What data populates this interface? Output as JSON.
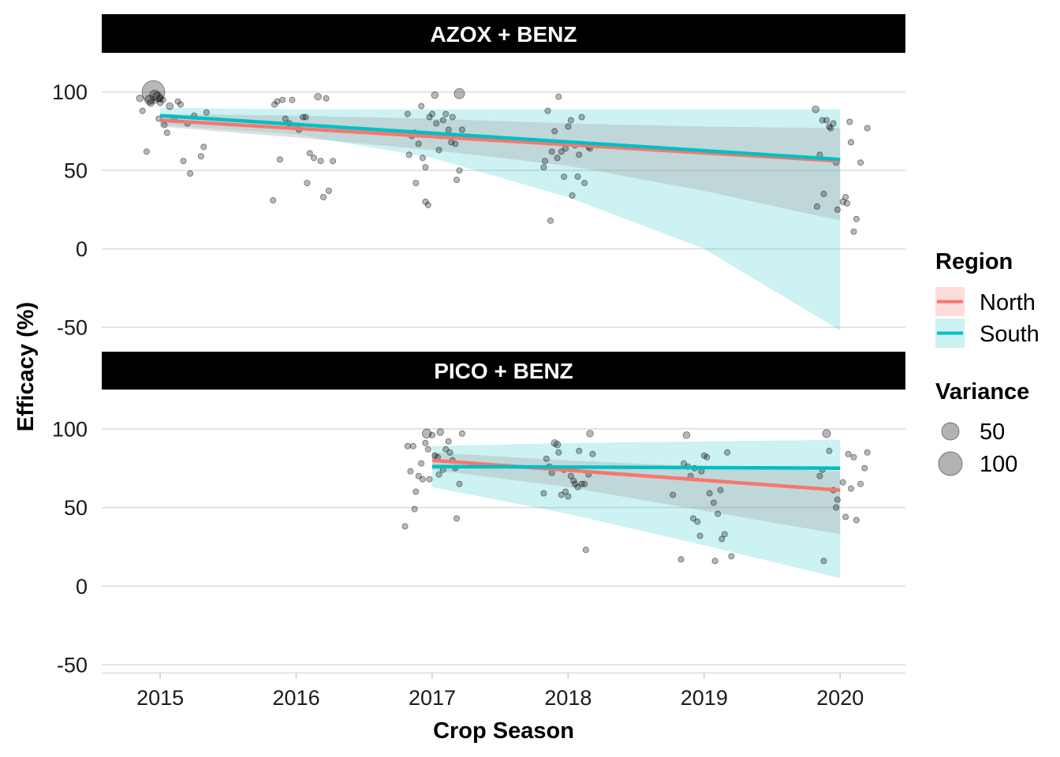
{
  "chart_data": {
    "type": "scatter",
    "xlabel": "Crop Season",
    "ylabel": "Efficacy (%)",
    "x_ticks": [
      "2015",
      "2016",
      "2017",
      "2018",
      "2019",
      "2020"
    ],
    "x_range": [
      2014.57,
      2020.48
    ],
    "ylim": [
      -55,
      125
    ],
    "y_ticks": [
      "-50",
      "0",
      "50",
      "100"
    ],
    "grid": true,
    "legend_position": "right",
    "legend": {
      "region_title": "Region",
      "regions": [
        {
          "name": "North",
          "color": "#F8766D"
        },
        {
          "name": "South",
          "color": "#00BFC4"
        }
      ],
      "variance_title": "Variance",
      "variance_levels": [
        {
          "label": "50",
          "value": 50
        },
        {
          "label": "100",
          "value": 100
        }
      ]
    },
    "panels": [
      {
        "strip": "AZOX + BENZ",
        "trend_lines": [
          {
            "region": "North",
            "x": [
              2015,
              2020
            ],
            "y": [
              82,
              56
            ]
          },
          {
            "region": "South",
            "x": [
              2015,
              2020
            ],
            "y": [
              85,
              57
            ]
          }
        ],
        "ribbons": [
          {
            "region": "South",
            "x": [
              2015,
              2016,
              2017,
              2018,
              2019,
              2020
            ],
            "lower": [
              79,
              73,
              58,
              33,
              0,
              -52
            ],
            "upper": [
              90,
              89,
              89,
              89,
              89,
              89
            ]
          },
          {
            "region": "North",
            "x": [
              2015,
              2016,
              2017,
              2018,
              2019,
              2020
            ],
            "lower": [
              78,
              71,
              63,
              53,
              37,
              18
            ],
            "upper": [
              86,
              85,
              83,
              80,
              78,
              77
            ]
          }
        ],
        "points": [
          [
            2014.85,
            96,
            6
          ],
          [
            2014.87,
            88,
            5
          ],
          [
            2014.9,
            62,
            5
          ],
          [
            2014.92,
            95,
            8
          ],
          [
            2014.93,
            93,
            6
          ],
          [
            2014.95,
            100,
            20
          ],
          [
            2014.96,
            98,
            9
          ],
          [
            2014.98,
            97,
            8
          ],
          [
            2014.99,
            83,
            5
          ],
          [
            2015.0,
            96,
            6
          ],
          [
            2015.0,
            93,
            5
          ],
          [
            2015.02,
            95,
            5
          ],
          [
            2015.03,
            79,
            5
          ],
          [
            2015.05,
            74,
            5
          ],
          [
            2015.07,
            91,
            6
          ],
          [
            2015.1,
            83,
            5
          ],
          [
            2015.13,
            94,
            5
          ],
          [
            2015.15,
            92,
            5
          ],
          [
            2015.17,
            56,
            5
          ],
          [
            2015.2,
            80,
            5
          ],
          [
            2015.22,
            48,
            5
          ],
          [
            2015.25,
            85,
            5
          ],
          [
            2015.3,
            59,
            5
          ],
          [
            2015.32,
            65,
            5
          ],
          [
            2015.34,
            87,
            5
          ],
          [
            2015.83,
            31,
            5
          ],
          [
            2015.84,
            92,
            5
          ],
          [
            2015.86,
            94,
            5
          ],
          [
            2015.88,
            57,
            5
          ],
          [
            2015.9,
            95,
            5
          ],
          [
            2015.92,
            83,
            5
          ],
          [
            2015.95,
            80,
            5
          ],
          [
            2015.97,
            95,
            5
          ],
          [
            2016.0,
            78,
            5
          ],
          [
            2016.02,
            76,
            5
          ],
          [
            2016.05,
            84,
            5
          ],
          [
            2016.07,
            84,
            5
          ],
          [
            2016.08,
            42,
            5
          ],
          [
            2016.1,
            61,
            5
          ],
          [
            2016.13,
            58,
            5
          ],
          [
            2016.16,
            97,
            6
          ],
          [
            2016.18,
            56,
            5
          ],
          [
            2016.2,
            33,
            5
          ],
          [
            2016.22,
            96,
            5
          ],
          [
            2016.24,
            37,
            5
          ],
          [
            2016.27,
            56,
            5
          ],
          [
            2016.82,
            86,
            5
          ],
          [
            2016.83,
            60,
            5
          ],
          [
            2016.85,
            72,
            5
          ],
          [
            2016.87,
            74,
            5
          ],
          [
            2016.88,
            42,
            5
          ],
          [
            2016.9,
            67,
            5
          ],
          [
            2016.92,
            91,
            5
          ],
          [
            2016.93,
            58,
            5
          ],
          [
            2016.95,
            30,
            5
          ],
          [
            2016.95,
            52,
            5
          ],
          [
            2016.97,
            28,
            5
          ],
          [
            2016.98,
            84,
            5
          ],
          [
            2017.0,
            86,
            5
          ],
          [
            2017.02,
            98,
            6
          ],
          [
            2017.03,
            80,
            5
          ],
          [
            2017.05,
            63,
            5
          ],
          [
            2017.06,
            72,
            5
          ],
          [
            2017.08,
            82,
            5
          ],
          [
            2017.1,
            86,
            5
          ],
          [
            2017.12,
            76,
            5
          ],
          [
            2017.14,
            68,
            5
          ],
          [
            2017.15,
            84,
            5
          ],
          [
            2017.17,
            67,
            5
          ],
          [
            2017.18,
            44,
            5
          ],
          [
            2017.2,
            50,
            5
          ],
          [
            2017.2,
            99,
            9
          ],
          [
            2017.22,
            76,
            5
          ],
          [
            2017.82,
            52,
            5
          ],
          [
            2017.83,
            56,
            5
          ],
          [
            2017.85,
            88,
            5
          ],
          [
            2017.87,
            18,
            5
          ],
          [
            2017.88,
            62,
            5
          ],
          [
            2017.9,
            75,
            5
          ],
          [
            2017.92,
            58,
            5
          ],
          [
            2017.93,
            97,
            5
          ],
          [
            2017.95,
            62,
            5
          ],
          [
            2017.97,
            46,
            5
          ],
          [
            2017.98,
            64,
            5
          ],
          [
            2018.0,
            78,
            5
          ],
          [
            2018.02,
            82,
            5
          ],
          [
            2018.03,
            34,
            5
          ],
          [
            2018.05,
            66,
            5
          ],
          [
            2018.07,
            46,
            5
          ],
          [
            2018.08,
            60,
            5
          ],
          [
            2018.1,
            84,
            5
          ],
          [
            2018.12,
            42,
            5
          ],
          [
            2018.15,
            65,
            5
          ],
          [
            2018.16,
            64,
            5
          ],
          [
            2019.82,
            89,
            6
          ],
          [
            2019.83,
            27,
            5
          ],
          [
            2019.85,
            60,
            5
          ],
          [
            2019.87,
            82,
            5
          ],
          [
            2019.88,
            35,
            5
          ],
          [
            2019.9,
            82,
            5
          ],
          [
            2019.92,
            78,
            5
          ],
          [
            2019.93,
            77,
            5
          ],
          [
            2019.95,
            80,
            5
          ],
          [
            2019.97,
            55,
            5
          ],
          [
            2019.98,
            25,
            5
          ],
          [
            2020.02,
            30,
            5
          ],
          [
            2020.04,
            33,
            5
          ],
          [
            2020.05,
            29,
            5
          ],
          [
            2020.07,
            81,
            5
          ],
          [
            2020.08,
            68,
            5
          ],
          [
            2020.1,
            11,
            5
          ],
          [
            2020.12,
            19,
            5
          ],
          [
            2020.15,
            55,
            5
          ],
          [
            2020.2,
            77,
            5
          ]
        ]
      },
      {
        "strip": "PICO + BENZ",
        "trend_lines": [
          {
            "region": "North",
            "x": [
              2017,
              2020
            ],
            "y": [
              80,
              61
            ]
          },
          {
            "region": "South",
            "x": [
              2017,
              2020
            ],
            "y": [
              76,
              75
            ]
          }
        ],
        "ribbons": [
          {
            "region": "South",
            "x": [
              2017,
              2018,
              2019,
              2020
            ],
            "lower": [
              63,
              46,
              26,
              5
            ],
            "upper": [
              89,
              91,
              92,
              93
            ]
          },
          {
            "region": "North",
            "x": [
              2017,
              2018,
              2019,
              2020
            ],
            "lower": [
              74,
              63,
              48,
              33
            ],
            "upper": [
              85,
              80,
              76,
              73
            ]
          }
        ],
        "points": [
          [
            2016.8,
            38,
            5
          ],
          [
            2016.82,
            89,
            5
          ],
          [
            2016.84,
            73,
            5
          ],
          [
            2016.86,
            89,
            5
          ],
          [
            2016.87,
            49,
            5
          ],
          [
            2016.88,
            60,
            5
          ],
          [
            2016.9,
            70,
            5
          ],
          [
            2016.92,
            78,
            5
          ],
          [
            2016.93,
            68,
            5
          ],
          [
            2016.95,
            91,
            5
          ],
          [
            2016.96,
            97,
            8
          ],
          [
            2016.97,
            87,
            5
          ],
          [
            2016.98,
            68,
            5
          ],
          [
            2017.0,
            96,
            5
          ],
          [
            2017.02,
            83,
            5
          ],
          [
            2017.04,
            82,
            5
          ],
          [
            2017.05,
            71,
            5
          ],
          [
            2017.06,
            98,
            6
          ],
          [
            2017.08,
            74,
            5
          ],
          [
            2017.1,
            87,
            5
          ],
          [
            2017.12,
            92,
            5
          ],
          [
            2017.13,
            85,
            5
          ],
          [
            2017.15,
            80,
            5
          ],
          [
            2017.17,
            75,
            5
          ],
          [
            2017.18,
            43,
            5
          ],
          [
            2017.2,
            65,
            5
          ],
          [
            2017.22,
            97,
            5
          ],
          [
            2017.82,
            59,
            5
          ],
          [
            2017.84,
            81,
            5
          ],
          [
            2017.86,
            76,
            5
          ],
          [
            2017.88,
            72,
            5
          ],
          [
            2017.9,
            91,
            6
          ],
          [
            2017.92,
            90,
            6
          ],
          [
            2017.93,
            85,
            5
          ],
          [
            2017.95,
            58,
            5
          ],
          [
            2017.97,
            74,
            5
          ],
          [
            2017.98,
            60,
            5
          ],
          [
            2018.0,
            57,
            5
          ],
          [
            2018.02,
            70,
            5
          ],
          [
            2018.04,
            67,
            5
          ],
          [
            2018.05,
            65,
            5
          ],
          [
            2018.07,
            63,
            5
          ],
          [
            2018.08,
            86,
            5
          ],
          [
            2018.1,
            65,
            5
          ],
          [
            2018.12,
            65,
            5
          ],
          [
            2018.13,
            23,
            5
          ],
          [
            2018.15,
            71,
            5
          ],
          [
            2018.16,
            97,
            6
          ],
          [
            2018.18,
            84,
            5
          ],
          [
            2018.77,
            58,
            5
          ],
          [
            2018.83,
            17,
            5
          ],
          [
            2018.85,
            78,
            5
          ],
          [
            2018.87,
            96,
            6
          ],
          [
            2018.88,
            76,
            5
          ],
          [
            2018.9,
            70,
            5
          ],
          [
            2018.92,
            43,
            5
          ],
          [
            2018.93,
            75,
            5
          ],
          [
            2018.95,
            41,
            5
          ],
          [
            2018.97,
            32,
            5
          ],
          [
            2018.98,
            73,
            5
          ],
          [
            2019.0,
            83,
            5
          ],
          [
            2019.02,
            82,
            5
          ],
          [
            2019.04,
            59,
            5
          ],
          [
            2019.07,
            53,
            5
          ],
          [
            2019.08,
            16,
            5
          ],
          [
            2019.1,
            46,
            5
          ],
          [
            2019.12,
            61,
            5
          ],
          [
            2019.13,
            30,
            5
          ],
          [
            2019.15,
            33,
            5
          ],
          [
            2019.17,
            85,
            5
          ],
          [
            2019.2,
            19,
            5
          ],
          [
            2019.85,
            70,
            5
          ],
          [
            2019.87,
            74,
            5
          ],
          [
            2019.88,
            16,
            5
          ],
          [
            2019.9,
            97,
            7
          ],
          [
            2019.92,
            86,
            5
          ],
          [
            2019.95,
            61,
            5
          ],
          [
            2019.97,
            50,
            5
          ],
          [
            2019.98,
            55,
            5
          ],
          [
            2020.02,
            66,
            5
          ],
          [
            2020.04,
            44,
            5
          ],
          [
            2020.06,
            84,
            5
          ],
          [
            2020.08,
            62,
            5
          ],
          [
            2020.1,
            82,
            5
          ],
          [
            2020.12,
            42,
            5
          ],
          [
            2020.15,
            65,
            5
          ],
          [
            2020.18,
            75,
            5
          ],
          [
            2020.2,
            85,
            5
          ]
        ]
      }
    ]
  }
}
